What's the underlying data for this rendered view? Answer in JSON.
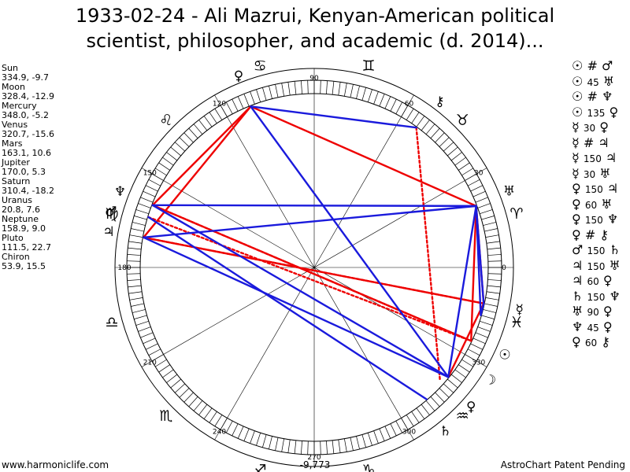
{
  "title": {
    "line1": "1933-02-24 - Ali Mazrui, Kenyan-American political",
    "line2": "scientist, philosopher, and academic (d. 2014)..."
  },
  "planets": [
    {
      "name": "Sun",
      "values": "334.9, -9.7"
    },
    {
      "name": "Moon",
      "values": "328.4, -12.9"
    },
    {
      "name": "Mercury",
      "values": "348.0, -5.2"
    },
    {
      "name": "Venus",
      "values": "320.7, -15.6"
    },
    {
      "name": "Mars",
      "values": "163.1, 10.6"
    },
    {
      "name": "Jupiter",
      "values": "170.0, 5.3"
    },
    {
      "name": "Saturn",
      "values": "310.4, -18.2"
    },
    {
      "name": "Uranus",
      "values": "20.8, 7.6"
    },
    {
      "name": "Neptune",
      "values": "158.9, 9.0"
    },
    {
      "name": "Pluto",
      "values": "111.5, 22.7"
    },
    {
      "name": "Chiron",
      "values": "53.9, 15.5"
    }
  ],
  "aspects": [
    {
      "p1": "☉",
      "angle": "#",
      "p2": "♂"
    },
    {
      "p1": "☉",
      "angle": "45",
      "p2": "♅"
    },
    {
      "p1": "☉",
      "angle": "#",
      "p2": "♆"
    },
    {
      "p1": "☉",
      "angle": "135",
      "p2": "♀"
    },
    {
      "p1": "☿",
      "angle": "30",
      "p2": "♀"
    },
    {
      "p1": "☿",
      "angle": "#",
      "p2": "♃"
    },
    {
      "p1": "☿",
      "angle": "150",
      "p2": "♃"
    },
    {
      "p1": "☿",
      "angle": "30",
      "p2": "♅"
    },
    {
      "p1": "♀",
      "angle": "150",
      "p2": "♃"
    },
    {
      "p1": "♀",
      "angle": "60",
      "p2": "♅"
    },
    {
      "p1": "♀",
      "angle": "150",
      "p2": "♆"
    },
    {
      "p1": "♀",
      "angle": "#",
      "p2": "⚷"
    },
    {
      "p1": "♂",
      "angle": "150",
      "p2": "♄"
    },
    {
      "p1": "♃",
      "angle": "150",
      "p2": "♅"
    },
    {
      "p1": "♃",
      "angle": "60",
      "p2": "♀"
    },
    {
      "p1": "♄",
      "angle": "150",
      "p2": "♆"
    },
    {
      "p1": "♅",
      "angle": "90",
      "p2": "♀"
    },
    {
      "p1": "♆",
      "angle": "45",
      "p2": "♀"
    },
    {
      "p1": "♀",
      "angle": "60",
      "p2": "⚷"
    }
  ],
  "wheel": {
    "degree_labels": [
      "0",
      "30",
      "60",
      "90",
      "120",
      "150",
      "180",
      "210",
      "240",
      "270",
      "300",
      "330"
    ],
    "sign_glyphs": [
      "♈",
      "♉",
      "♊",
      "♋",
      "♌",
      "♍",
      "♎",
      "♏",
      "♐",
      "♑",
      "♒",
      "♓"
    ],
    "body_glyphs": {
      "sun": "☉",
      "moon": "☽",
      "mercury": "☿",
      "venus": "♀",
      "mars": "♂",
      "jupiter": "♃",
      "saturn": "♄",
      "uranus": "♅",
      "neptune": "♆",
      "pluto": "♀",
      "chiron": "⚷"
    },
    "colors": {
      "red": "#ee0000",
      "blue": "#1a1adc"
    }
  },
  "footer": {
    "left": "www.harmoniclife.com",
    "center": "-9,773",
    "right": "AstroChart Patent Pending"
  }
}
